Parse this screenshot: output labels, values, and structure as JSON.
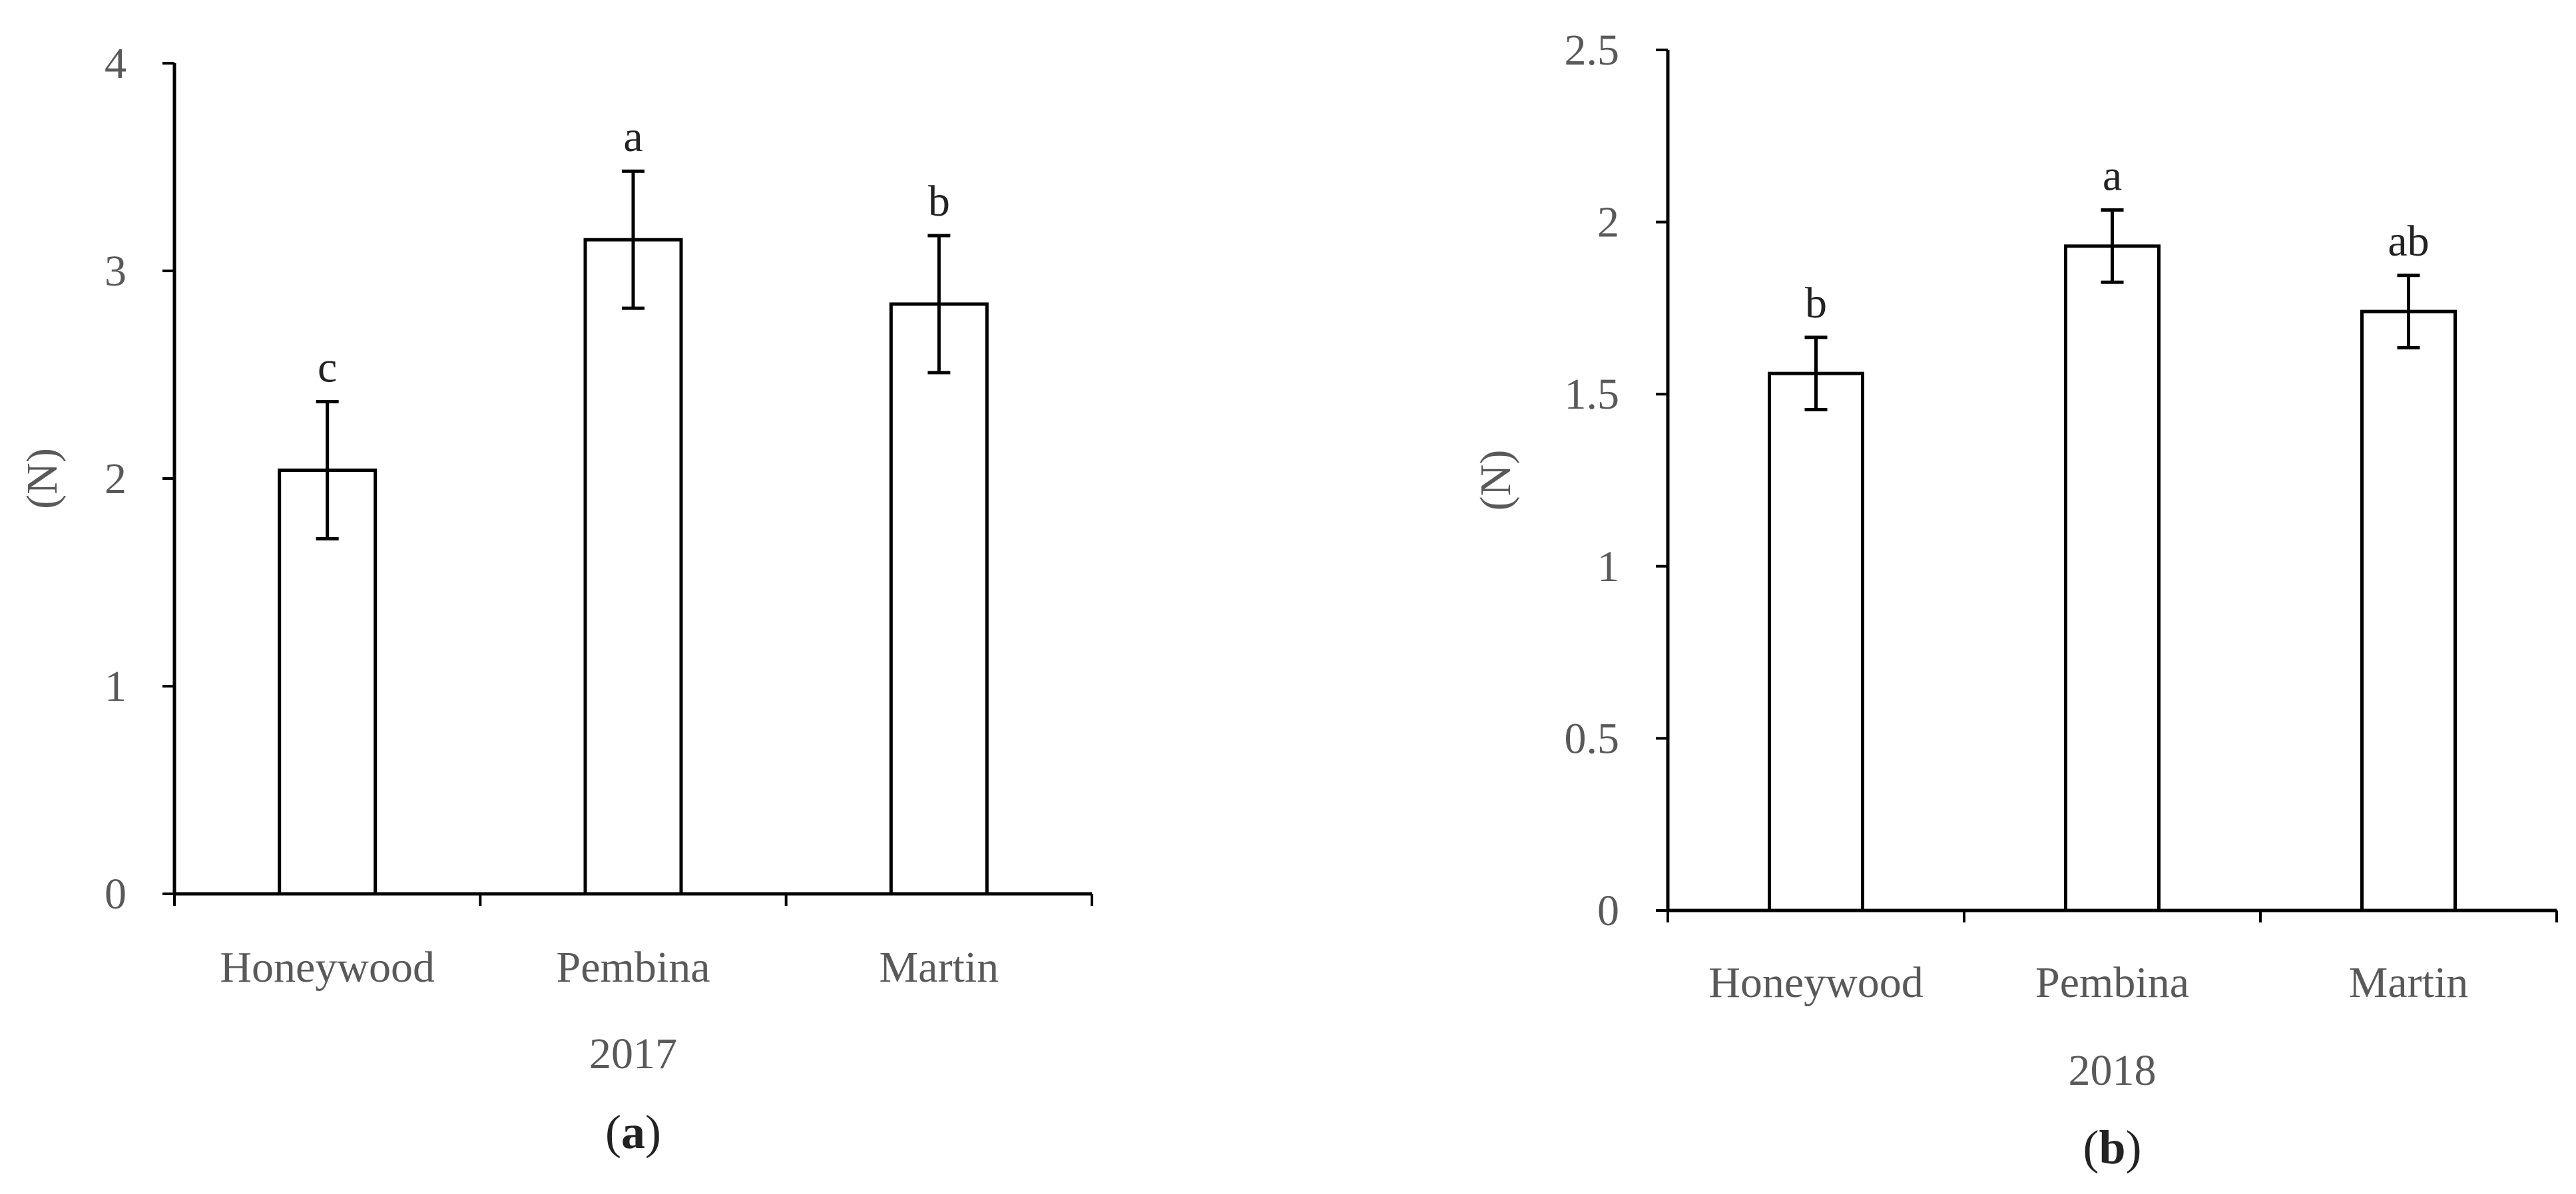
{
  "figure": {
    "title": "",
    "panels": [
      {
        "id": "a",
        "caption_open": "(",
        "caption_letter": "a",
        "caption_close": ")"
      },
      {
        "id": "b",
        "caption_open": "(",
        "caption_letter": "b",
        "caption_close": ")"
      }
    ]
  },
  "chart_data": [
    {
      "type": "bar",
      "title": "",
      "xlabel": "2017",
      "ylabel": "(N)",
      "ylim": [
        0,
        4
      ],
      "yticks": [
        0,
        1,
        2,
        3,
        4
      ],
      "ytick_labels": [
        "0",
        "1",
        "2",
        "3",
        "4"
      ],
      "categories": [
        "Honeywood",
        "Pembina",
        "Martin"
      ],
      "values": [
        2.04,
        3.15,
        2.84
      ],
      "error": [
        0.33,
        0.33,
        0.33
      ],
      "significance_labels": [
        "c",
        "a",
        "b"
      ],
      "bar_fill": "#ffffff",
      "bar_stroke": "#000000",
      "grid": false,
      "legend": "none"
    },
    {
      "type": "bar",
      "title": "",
      "xlabel": "2018",
      "ylabel": "(N)",
      "ylim": [
        0,
        2.5
      ],
      "yticks": [
        0,
        0.5,
        1,
        1.5,
        2,
        2.5
      ],
      "ytick_labels": [
        "0",
        "0.5",
        "1",
        "1.5",
        "2",
        "2.5"
      ],
      "categories": [
        "Honeywood",
        "Pembina",
        "Martin"
      ],
      "values": [
        1.56,
        1.93,
        1.74
      ],
      "error": [
        0.105,
        0.105,
        0.105
      ],
      "significance_labels": [
        "b",
        "a",
        "ab"
      ],
      "bar_fill": "#ffffff",
      "bar_stroke": "#000000",
      "grid": false,
      "legend": "none"
    }
  ]
}
